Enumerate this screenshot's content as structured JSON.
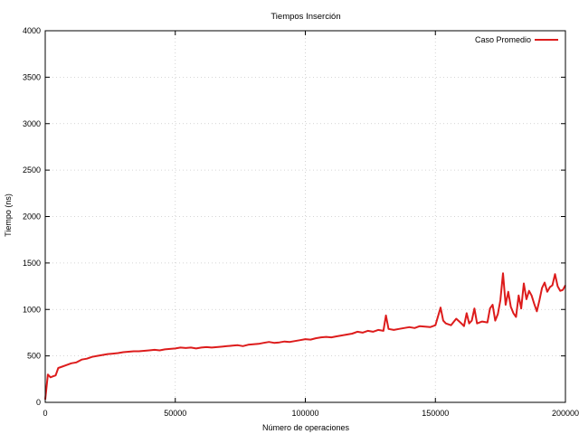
{
  "chart_data": {
    "type": "line",
    "title": "Tiempos Inserción",
    "xlabel": "Número de operaciones",
    "ylabel": "Tiempo (ns)",
    "xlim": [
      0,
      200000
    ],
    "ylim": [
      0,
      4000
    ],
    "x_ticks": [
      0,
      50000,
      100000,
      150000,
      200000
    ],
    "x_tick_labels": [
      "0",
      "50000",
      "100000",
      "150000",
      "200000"
    ],
    "y_ticks": [
      0,
      500,
      1000,
      1500,
      2000,
      2500,
      3000,
      3500,
      4000
    ],
    "y_tick_labels": [
      "0",
      "500",
      "1000",
      "1500",
      "2000",
      "2500",
      "3000",
      "3500",
      "4000"
    ],
    "grid": true,
    "legend_position": "top-right",
    "series": [
      {
        "name": "Caso Promedio",
        "color": "#dd1c1c",
        "x": [
          0,
          1000,
          2000,
          3000,
          4000,
          5000,
          6000,
          8000,
          10000,
          12000,
          14000,
          16000,
          18000,
          20000,
          22000,
          24000,
          26000,
          28000,
          30000,
          32000,
          34000,
          36000,
          38000,
          40000,
          42000,
          44000,
          46000,
          48000,
          50000,
          52000,
          54000,
          56000,
          58000,
          60000,
          62000,
          64000,
          66000,
          68000,
          70000,
          72000,
          74000,
          76000,
          78000,
          80000,
          82000,
          84000,
          86000,
          88000,
          90000,
          92000,
          94000,
          96000,
          98000,
          100000,
          102000,
          104000,
          106000,
          108000,
          110000,
          112000,
          114000,
          116000,
          118000,
          120000,
          122000,
          124000,
          126000,
          128000,
          130000,
          131000,
          132000,
          134000,
          136000,
          138000,
          140000,
          142000,
          144000,
          146000,
          148000,
          150000,
          152000,
          153000,
          154000,
          156000,
          158000,
          160000,
          161000,
          162000,
          163000,
          164000,
          165000,
          166000,
          168000,
          170000,
          171000,
          172000,
          173000,
          174000,
          175000,
          176000,
          177000,
          178000,
          179000,
          180000,
          181000,
          182000,
          183000,
          184000,
          185000,
          186000,
          187000,
          188000,
          189000,
          190000,
          191000,
          192000,
          193000,
          194000,
          195000,
          196000,
          197000,
          198000,
          199000,
          200000
        ],
        "y": [
          30,
          300,
          270,
          280,
          290,
          370,
          380,
          400,
          420,
          430,
          460,
          470,
          490,
          500,
          510,
          520,
          525,
          530,
          540,
          545,
          550,
          550,
          555,
          560,
          565,
          560,
          570,
          575,
          580,
          590,
          585,
          590,
          580,
          590,
          595,
          590,
          595,
          600,
          605,
          610,
          615,
          605,
          620,
          625,
          630,
          640,
          650,
          640,
          645,
          655,
          650,
          660,
          670,
          680,
          675,
          690,
          700,
          705,
          700,
          710,
          720,
          730,
          740,
          760,
          750,
          770,
          760,
          780,
          770,
          935,
          790,
          780,
          790,
          800,
          810,
          800,
          820,
          815,
          810,
          830,
          1020,
          880,
          850,
          830,
          900,
          850,
          820,
          960,
          850,
          880,
          1010,
          850,
          870,
          860,
          1010,
          1050,
          880,
          950,
          1100,
          1390,
          1050,
          1190,
          1030,
          960,
          920,
          1150,
          1010,
          1280,
          1110,
          1200,
          1150,
          1060,
          980,
          1100,
          1230,
          1290,
          1190,
          1240,
          1260,
          1380,
          1250,
          1200,
          1210,
          1260
        ]
      }
    ]
  }
}
